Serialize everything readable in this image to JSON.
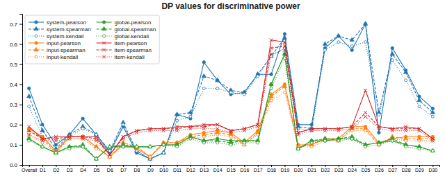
{
  "chart_data": {
    "type": "line",
    "title": "DP values for discriminative power",
    "categories": [
      "Overall",
      "D1",
      "D2",
      "D3",
      "D4",
      "D5",
      "D6",
      "D7",
      "D8",
      "D9",
      "D10",
      "D11",
      "D12",
      "D13",
      "D14",
      "D15",
      "D16",
      "D17",
      "D18",
      "D19",
      "D20",
      "D21",
      "D22",
      "D23",
      "D24",
      "D25",
      "D26",
      "D27",
      "D28",
      "D29",
      "D30"
    ],
    "series": [
      {
        "name": "system-pearson",
        "color": "#1f77b4",
        "line_style": "solid",
        "marker": "circle",
        "values": [
          0.38,
          0.2,
          0.1,
          0.15,
          0.23,
          0.15,
          0.06,
          0.19,
          0.06,
          0.03,
          0.06,
          0.25,
          0.23,
          0.51,
          0.42,
          0.35,
          0.36,
          0.45,
          0.45,
          0.65,
          0.2,
          0.2,
          0.58,
          0.64,
          0.57,
          0.7,
          0.16,
          0.58,
          0.47,
          0.34,
          0.28
        ]
      },
      {
        "name": "system-spearman",
        "color": "#1f77b4",
        "line_style": "dashed",
        "marker": "triangle",
        "values": [
          0.34,
          0.17,
          0.08,
          0.15,
          0.19,
          0.15,
          0.07,
          0.21,
          0.07,
          0.03,
          0.06,
          0.25,
          0.26,
          0.44,
          0.42,
          0.37,
          0.36,
          0.45,
          0.54,
          0.63,
          0.19,
          0.18,
          0.6,
          0.64,
          0.62,
          0.7,
          0.26,
          0.55,
          0.46,
          0.32,
          0.26
        ]
      },
      {
        "name": "system-kendall",
        "color": "#1f77b4",
        "line_style": "dotted",
        "marker": "circle-open",
        "values": [
          0.29,
          0.14,
          0.07,
          0.14,
          0.18,
          0.15,
          0.07,
          0.2,
          0.07,
          0.03,
          0.06,
          0.22,
          0.24,
          0.38,
          0.38,
          0.36,
          0.35,
          0.44,
          0.54,
          0.58,
          0.18,
          0.17,
          0.57,
          0.61,
          0.59,
          0.61,
          0.25,
          0.52,
          0.42,
          0.29,
          0.24
        ]
      },
      {
        "name": "input-pearson",
        "color": "#ff7f0e",
        "line_style": "solid",
        "marker": "circle",
        "values": [
          0.18,
          0.14,
          0.07,
          0.14,
          0.14,
          0.09,
          0.04,
          0.1,
          0.08,
          0.04,
          0.11,
          0.11,
          0.15,
          0.16,
          0.17,
          0.16,
          0.11,
          0.17,
          0.35,
          0.4,
          0.1,
          0.1,
          0.13,
          0.13,
          0.19,
          0.19,
          0.11,
          0.13,
          0.14,
          0.14,
          0.14
        ]
      },
      {
        "name": "input-spearman",
        "color": "#ff7f0e",
        "line_style": "dashed",
        "marker": "triangle",
        "values": [
          0.17,
          0.13,
          0.06,
          0.14,
          0.14,
          0.09,
          0.04,
          0.11,
          0.09,
          0.04,
          0.11,
          0.11,
          0.14,
          0.15,
          0.16,
          0.15,
          0.1,
          0.16,
          0.34,
          0.39,
          0.09,
          0.1,
          0.13,
          0.12,
          0.18,
          0.18,
          0.1,
          0.14,
          0.13,
          0.13,
          0.13
        ]
      },
      {
        "name": "input-kendall",
        "color": "#ff7f0e",
        "line_style": "dotted",
        "marker": "circle-open",
        "values": [
          0.15,
          0.11,
          0.06,
          0.13,
          0.13,
          0.08,
          0.04,
          0.1,
          0.09,
          0.04,
          0.1,
          0.1,
          0.13,
          0.14,
          0.15,
          0.14,
          0.1,
          0.15,
          0.32,
          0.36,
          0.09,
          0.09,
          0.12,
          0.12,
          0.17,
          0.17,
          0.1,
          0.13,
          0.12,
          0.12,
          0.12
        ]
      },
      {
        "name": "global-pearson",
        "color": "#2ca02c",
        "line_style": "solid",
        "marker": "circle",
        "values": [
          0.13,
          0.09,
          0.06,
          0.09,
          0.09,
          0.03,
          0.09,
          0.09,
          0.09,
          0.09,
          0.1,
          0.1,
          0.14,
          0.12,
          0.13,
          0.12,
          0.12,
          0.12,
          0.4,
          0.55,
          0.08,
          0.12,
          0.12,
          0.13,
          0.13,
          0.1,
          0.11,
          0.12,
          0.1,
          0.09,
          0.07
        ]
      },
      {
        "name": "global-spearman",
        "color": "#2ca02c",
        "line_style": "dashed",
        "marker": "triangle",
        "values": [
          0.13,
          0.09,
          0.06,
          0.09,
          0.1,
          0.03,
          0.09,
          0.1,
          0.09,
          0.09,
          0.1,
          0.1,
          0.14,
          0.12,
          0.12,
          0.11,
          0.12,
          0.12,
          0.4,
          0.55,
          0.08,
          0.12,
          0.13,
          0.13,
          0.14,
          0.1,
          0.11,
          0.13,
          0.1,
          0.09,
          0.07
        ]
      },
      {
        "name": "global-kendall",
        "color": "#2ca02c",
        "line_style": "dotted",
        "marker": "circle-open",
        "values": [
          0.12,
          0.09,
          0.06,
          0.08,
          0.09,
          0.03,
          0.09,
          0.09,
          0.09,
          0.09,
          0.1,
          0.09,
          0.13,
          0.11,
          0.11,
          0.1,
          0.11,
          0.11,
          0.38,
          0.53,
          0.08,
          0.11,
          0.12,
          0.12,
          0.13,
          0.09,
          0.1,
          0.12,
          0.09,
          0.08,
          0.07
        ]
      },
      {
        "name": "item-pearson",
        "color": "#d62728",
        "line_style": "solid",
        "marker": "x",
        "values": [
          0.19,
          0.13,
          0.14,
          0.14,
          0.14,
          0.14,
          0.05,
          0.14,
          0.17,
          0.18,
          0.18,
          0.19,
          0.19,
          0.2,
          0.2,
          0.17,
          0.18,
          0.2,
          0.62,
          0.61,
          0.16,
          0.18,
          0.18,
          0.18,
          0.19,
          0.37,
          0.19,
          0.18,
          0.19,
          0.18,
          0.13
        ]
      },
      {
        "name": "item-spearman",
        "color": "#d62728",
        "line_style": "dashed",
        "marker": "x",
        "values": [
          0.17,
          0.13,
          0.13,
          0.14,
          0.14,
          0.13,
          0.05,
          0.14,
          0.17,
          0.18,
          0.18,
          0.18,
          0.19,
          0.19,
          0.2,
          0.17,
          0.18,
          0.2,
          0.58,
          0.59,
          0.16,
          0.18,
          0.18,
          0.18,
          0.19,
          0.26,
          0.19,
          0.18,
          0.18,
          0.18,
          0.13
        ]
      },
      {
        "name": "item-kendall",
        "color": "#d62728",
        "line_style": "dotted",
        "marker": "x",
        "values": [
          0.15,
          0.12,
          0.12,
          0.13,
          0.13,
          0.12,
          0.05,
          0.13,
          0.16,
          0.17,
          0.17,
          0.17,
          0.18,
          0.18,
          0.18,
          0.16,
          0.17,
          0.19,
          0.55,
          0.57,
          0.15,
          0.17,
          0.17,
          0.17,
          0.18,
          0.24,
          0.18,
          0.17,
          0.17,
          0.17,
          0.12
        ]
      }
    ],
    "ylim": [
      0.0,
      0.75
    ],
    "yticks": [
      {
        "value": 0.0,
        "label": "0.0"
      },
      0.1,
      0.2,
      0.3,
      0.4,
      0.5,
      0.6,
      0.7
    ],
    "grid": false,
    "legend": "upper left"
  }
}
